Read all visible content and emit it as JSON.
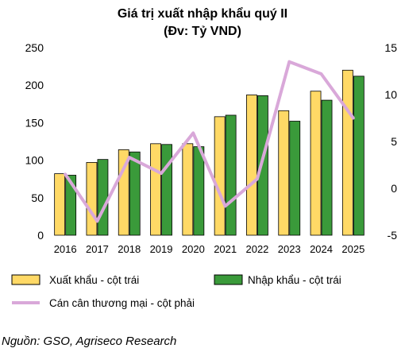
{
  "chart_data": {
    "type": "bar",
    "title": "Giá trị xuất nhập khẩu quý II",
    "subtitle": "(Đv: Tỷ VND)",
    "categories": [
      "2016",
      "2017",
      "2018",
      "2019",
      "2020",
      "2021",
      "2022",
      "2023",
      "2024",
      "2025"
    ],
    "series": [
      {
        "name": "Xuất khẩu - cột trái",
        "type": "bar",
        "axis": "left",
        "color": "#FFD966",
        "values": [
          82,
          97,
          114,
          122,
          122,
          158,
          187,
          166,
          192,
          220
        ]
      },
      {
        "name": "Nhập khẩu - cột trái",
        "type": "bar",
        "axis": "left",
        "color": "#3A9A3A",
        "values": [
          80,
          101,
          111,
          121,
          118,
          160,
          186,
          152,
          180,
          212
        ]
      },
      {
        "name": "Cán cân thương mại - cột phải",
        "type": "line",
        "axis": "right",
        "color": "#D9A8D9",
        "values": [
          1.5,
          -3.5,
          3.3,
          1.6,
          5.9,
          -1.9,
          1.0,
          13.5,
          12.2,
          7.5
        ]
      }
    ],
    "left_axis": {
      "ylim": [
        0,
        250
      ],
      "ticks": [
        "0",
        "50",
        "100",
        "150",
        "200",
        "250"
      ]
    },
    "right_axis": {
      "ylim": [
        -5,
        15
      ],
      "ticks": [
        "-5",
        "0",
        "5",
        "10",
        "15"
      ]
    },
    "grid": false,
    "legend": "bottom"
  },
  "source": "Nguồn: GSO, Agriseco Research"
}
